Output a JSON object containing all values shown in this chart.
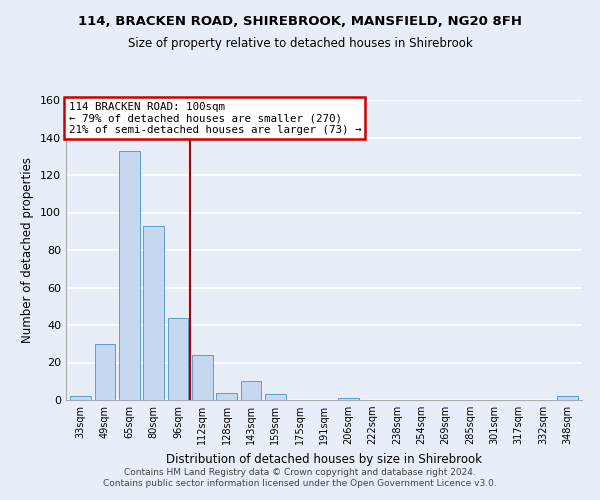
{
  "title1": "114, BRACKEN ROAD, SHIREBROOK, MANSFIELD, NG20 8FH",
  "title2": "Size of property relative to detached houses in Shirebrook",
  "xlabel": "Distribution of detached houses by size in Shirebrook",
  "ylabel": "Number of detached properties",
  "categories": [
    "33sqm",
    "49sqm",
    "65sqm",
    "80sqm",
    "96sqm",
    "112sqm",
    "128sqm",
    "143sqm",
    "159sqm",
    "175sqm",
    "191sqm",
    "206sqm",
    "222sqm",
    "238sqm",
    "254sqm",
    "269sqm",
    "285sqm",
    "301sqm",
    "317sqm",
    "332sqm",
    "348sqm"
  ],
  "values": [
    2,
    30,
    133,
    93,
    44,
    24,
    4,
    10,
    3,
    0,
    0,
    1,
    0,
    0,
    0,
    0,
    0,
    0,
    0,
    0,
    2
  ],
  "bar_color": "#c5d8f0",
  "bar_edge_color": "#5a9fd4",
  "vline_x": 4.5,
  "vline_color": "#aa0000",
  "annotation_line1": "114 BRACKEN ROAD: 100sqm",
  "annotation_line2": "← 79% of detached houses are smaller (270)",
  "annotation_line3": "21% of semi-detached houses are larger (73) →",
  "annotation_box_color": "#ffffff",
  "annotation_box_edge": "#cc0000",
  "ylim": [
    0,
    160
  ],
  "yticks": [
    0,
    20,
    40,
    60,
    80,
    100,
    120,
    140,
    160
  ],
  "footer_line1": "Contains HM Land Registry data © Crown copyright and database right 2024.",
  "footer_line2": "Contains public sector information licensed under the Open Government Licence v3.0.",
  "bg_color": "#e8eef8"
}
